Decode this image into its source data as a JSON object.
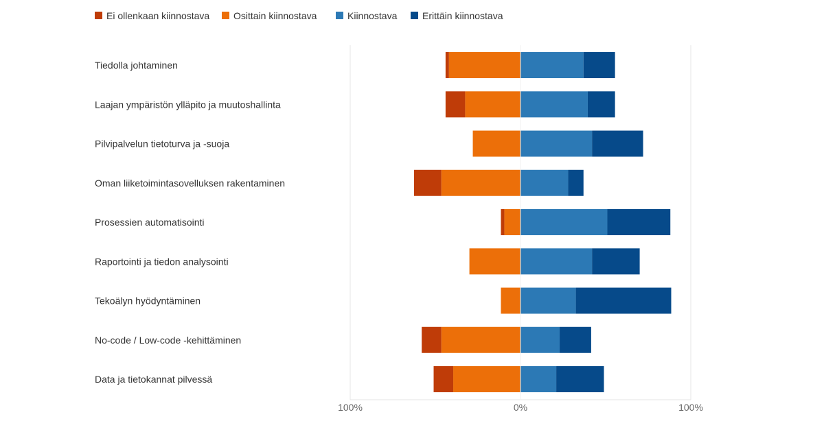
{
  "chart_data": {
    "type": "bar",
    "orientation": "horizontal",
    "stacking": "diverging",
    "legend_position": "top-left",
    "grid": true,
    "xlim": [
      -100,
      100
    ],
    "x_ticks": [
      {
        "value": -100,
        "label": "100%"
      },
      {
        "value": 0,
        "label": "0%"
      },
      {
        "value": 100,
        "label": "100%"
      }
    ],
    "categories": [
      "Tiedolla johtaminen",
      "Laajan ympäristön ylläpito ja muutoshallinta",
      "Pilvipalvelun tietoturva ja -suoja",
      "Oman liiketoimintasovelluksen rakentaminen",
      "Prosessien automatisointi",
      "Raportointi ja tiedon analysointi",
      "Tekoälyn hyödyntäminen",
      "No-code / Low-code -kehittäminen",
      "Data ja tietokannat pilvessä"
    ],
    "series": [
      {
        "name": "Ei ollenkaan kiinnostava",
        "color": "#bf3c08",
        "side": "negative",
        "values": [
          2,
          11.5,
          0,
          16,
          2,
          0,
          0,
          11.5,
          11.5
        ]
      },
      {
        "name": "Osittain kiinnostava",
        "color": "#ec6f09",
        "side": "negative",
        "values": [
          42,
          32.5,
          28,
          46.5,
          9.5,
          30,
          11.5,
          46.5,
          39.5
        ]
      },
      {
        "name": "Kiinnostava",
        "color": "#2c79b5",
        "side": "positive",
        "values": [
          37,
          39.5,
          42,
          28,
          51,
          42,
          32.5,
          23,
          21
        ]
      },
      {
        "name": "Erittäin kiinnostava",
        "color": "#064a8a",
        "side": "positive",
        "values": [
          18.5,
          16,
          30,
          9,
          37,
          28,
          56,
          18.5,
          28
        ]
      }
    ]
  }
}
